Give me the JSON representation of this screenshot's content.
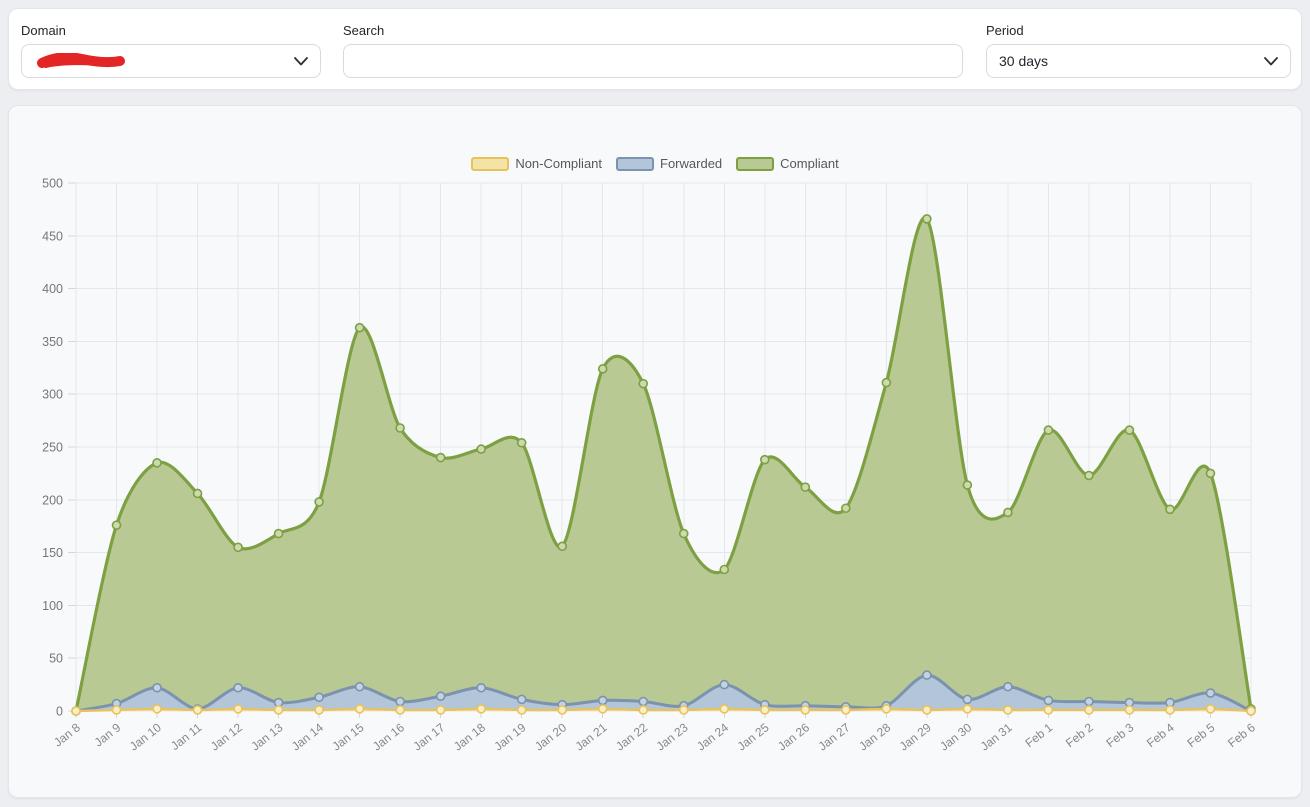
{
  "filters": {
    "domain": {
      "label": "Domain"
    },
    "search": {
      "label": "Search",
      "value": ""
    },
    "period": {
      "label": "Period",
      "value": "30 days"
    }
  },
  "chart_data": {
    "type": "area",
    "title": "",
    "xlabel": "",
    "ylabel": "",
    "ylim": [
      0,
      500
    ],
    "ytick_step": 50,
    "grid": true,
    "legend_position": "top-center",
    "x": [
      "Jan 8",
      "Jan 9",
      "Jan 10",
      "Jan 11",
      "Jan 12",
      "Jan 13",
      "Jan 14",
      "Jan 15",
      "Jan 16",
      "Jan 17",
      "Jan 18",
      "Jan 19",
      "Jan 20",
      "Jan 21",
      "Jan 22",
      "Jan 23",
      "Jan 24",
      "Jan 25",
      "Jan 26",
      "Jan 27",
      "Jan 28",
      "Jan 29",
      "Jan 30",
      "Jan 31",
      "Feb 1",
      "Feb 2",
      "Feb 3",
      "Feb 4",
      "Feb 5",
      "Feb 6"
    ],
    "series": [
      {
        "name": "Non-Compliant",
        "line_color": "#e8c35c",
        "fill_color": "#f4e3a7",
        "marker_fill": "#f9eec6",
        "line_width": 2.4,
        "values": [
          0,
          1,
          2,
          1,
          2,
          1,
          1,
          2,
          1,
          1,
          2,
          1,
          1,
          2,
          1,
          1,
          2,
          1,
          1,
          1,
          2,
          1,
          2,
          1,
          1,
          1,
          1,
          1,
          2,
          0
        ]
      },
      {
        "name": "Forwarded",
        "line_color": "#7b93af",
        "fill_color": "#b3c5d9",
        "marker_fill": "#c4d3e3",
        "line_width": 3,
        "values": [
          0,
          7,
          22,
          2,
          22,
          8,
          13,
          23,
          9,
          14,
          22,
          11,
          6,
          10,
          9,
          5,
          25,
          6,
          5,
          4,
          5,
          34,
          11,
          23,
          10,
          9,
          8,
          8,
          17,
          0
        ]
      },
      {
        "name": "Compliant",
        "line_color": "#7da043",
        "fill_color": "#b8c993",
        "marker_fill": "#cdd9ae",
        "line_width": 3.2,
        "values": [
          0,
          176,
          235,
          206,
          155,
          168,
          198,
          363,
          268,
          240,
          248,
          254,
          156,
          324,
          310,
          168,
          134,
          238,
          212,
          192,
          311,
          466,
          214,
          188,
          266,
          223,
          266,
          191,
          225,
          2
        ]
      }
    ]
  }
}
